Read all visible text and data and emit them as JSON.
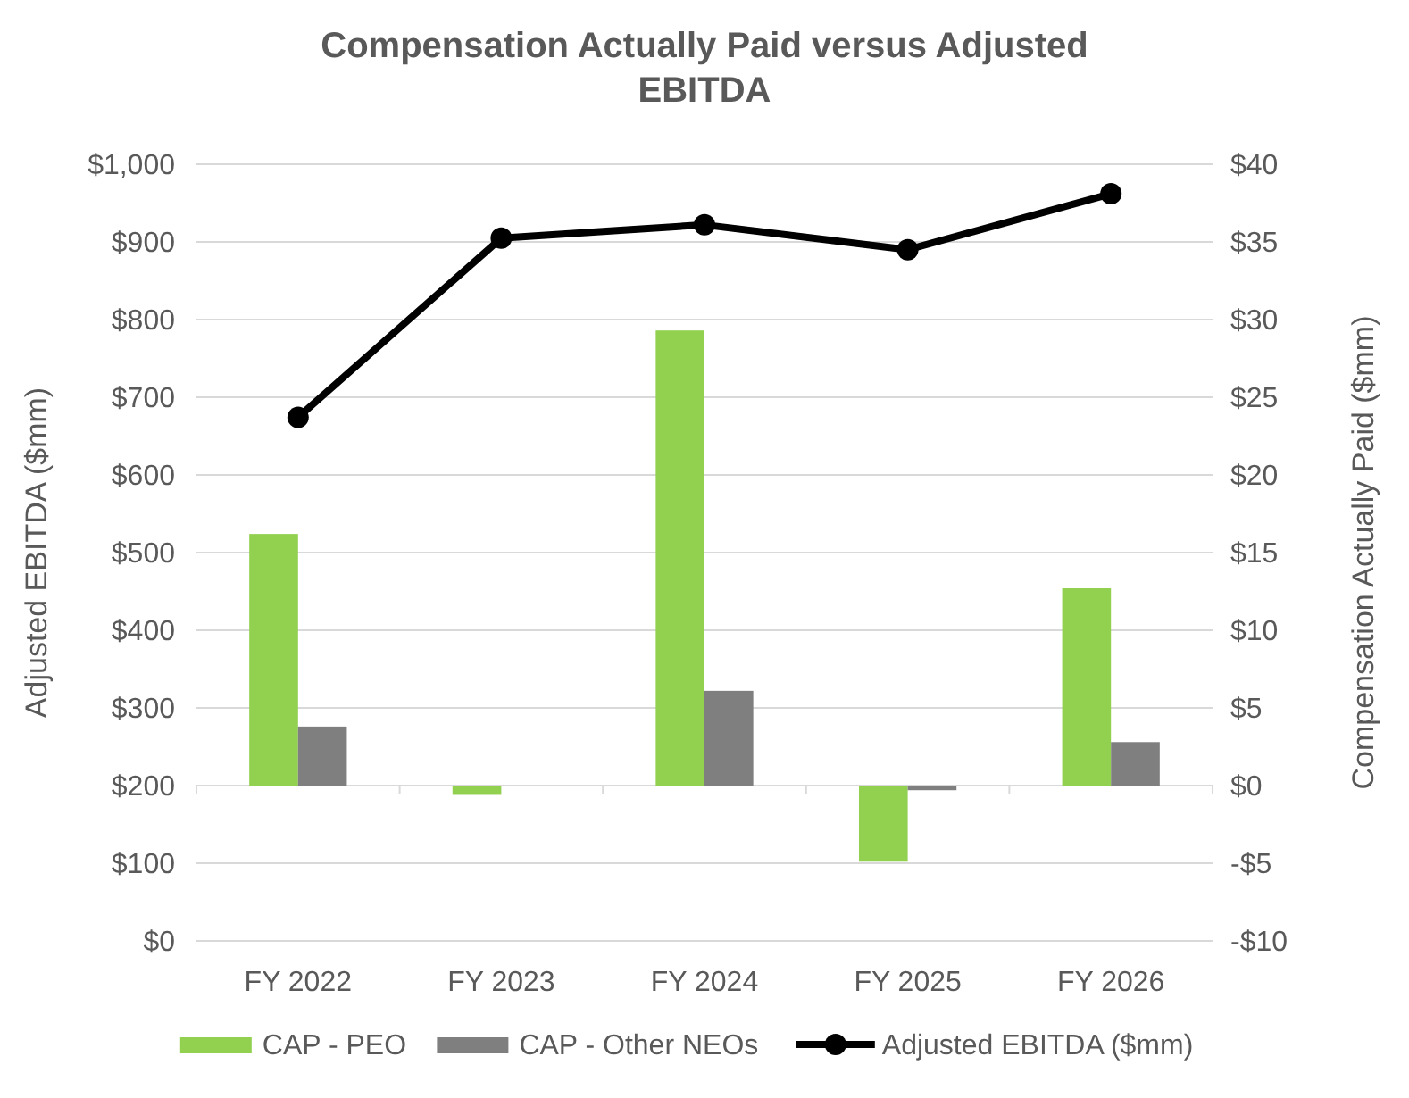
{
  "chart_data": {
    "type": "bar",
    "title": "Compensation Actually Paid versus Adjusted EBITDA",
    "ylabel": "Adjusted EBITDA ($mm)",
    "y2label": "Compensation Actually Paid ($mm)",
    "categories": [
      "FY 2022",
      "FY 2023",
      "FY 2024",
      "FY 2025",
      "FY 2026"
    ],
    "series": [
      {
        "name": "CAP - PEO",
        "color": "#92d050",
        "values": [
          16.2,
          -0.6,
          29.3,
          -4.9,
          12.7
        ],
        "axis": "y2"
      },
      {
        "name": "CAP - Other NEOs",
        "color": "#7f7f7f",
        "values": [
          3.8,
          0,
          6.1,
          -0.3,
          2.8
        ],
        "axis": "y2"
      },
      {
        "name": "Adjusted EBITDA ($mm)",
        "type": "line",
        "color": "#000000",
        "values": [
          674,
          905,
          922,
          890,
          962
        ],
        "marker": "circle"
      }
    ],
    "ylim": [
      0,
      1000
    ],
    "yticks": [
      {
        "value": 0,
        "label": "$0"
      },
      {
        "value": 100,
        "label": "$100"
      },
      {
        "value": 200,
        "label": "$200"
      },
      {
        "value": 300,
        "label": "$300"
      },
      {
        "value": 400,
        "label": "$400"
      },
      {
        "value": 500,
        "label": "$500"
      },
      {
        "value": 600,
        "label": "$600"
      },
      {
        "value": 700,
        "label": "$700"
      },
      {
        "value": 800,
        "label": "$800"
      },
      {
        "value": 900,
        "label": "$900"
      },
      {
        "value": 1000,
        "label": "$1,000"
      }
    ],
    "y2lim": [
      -10,
      40
    ],
    "y2ticks": [
      {
        "value": -10,
        "label": "-$10"
      },
      {
        "value": -5,
        "label": "-$5"
      },
      {
        "value": 0,
        "label": "$0"
      },
      {
        "value": 5,
        "label": "$5"
      },
      {
        "value": 10,
        "label": "$10"
      },
      {
        "value": 15,
        "label": "$15"
      },
      {
        "value": 20,
        "label": "$20"
      },
      {
        "value": 25,
        "label": "$25"
      },
      {
        "value": 30,
        "label": "$30"
      },
      {
        "value": 35,
        "label": "$35"
      },
      {
        "value": 40,
        "label": "$40"
      }
    ],
    "grid": "y",
    "legend": "bottom"
  }
}
